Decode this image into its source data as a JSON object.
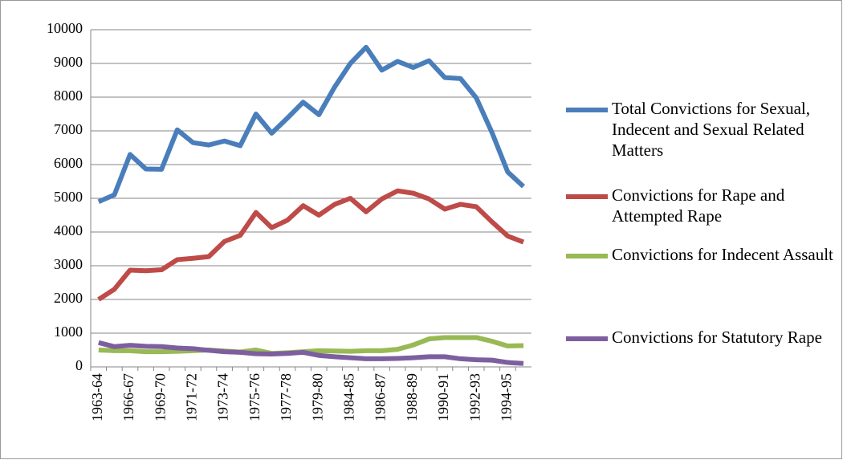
{
  "chart_data": {
    "type": "line",
    "categories": [
      "1963-64",
      null,
      "1966-67",
      null,
      "1969-70",
      null,
      "1971-72",
      null,
      "1973-74",
      null,
      "1975-76",
      null,
      "1977-78",
      null,
      "1979-80",
      null,
      "1984-85",
      null,
      "1986-87",
      null,
      "1988-89",
      null,
      "1990-91",
      null,
      "1992-93",
      null,
      "1994-95",
      null
    ],
    "series": [
      {
        "name": "Total Convictions for Sexual, Indecent and Sexual Related Matters",
        "color": "#4a7ebb",
        "values": [
          4900,
          5100,
          6300,
          5870,
          5860,
          7030,
          6650,
          6580,
          6700,
          6560,
          7500,
          6930,
          7380,
          7850,
          7480,
          8300,
          9000,
          9480,
          8800,
          9060,
          8880,
          9080,
          8580,
          8550,
          7980,
          6950,
          5780,
          5350
        ]
      },
      {
        "name": "Convictions for Rape and Attempted Rape",
        "color": "#be4b48",
        "values": [
          2000,
          2300,
          2870,
          2850,
          2880,
          3180,
          3220,
          3270,
          3720,
          3900,
          4580,
          4130,
          4350,
          4780,
          4500,
          4820,
          5000,
          4600,
          4980,
          5220,
          5150,
          4980,
          4680,
          4820,
          4750,
          4300,
          3880,
          3700
        ]
      },
      {
        "name": "Convictions for Indecent Assault",
        "color": "#98b954",
        "values": [
          500,
          480,
          480,
          450,
          450,
          460,
          480,
          500,
          470,
          440,
          500,
          400,
          420,
          450,
          480,
          470,
          460,
          480,
          480,
          520,
          650,
          830,
          870,
          870,
          870,
          760,
          620,
          630
        ]
      },
      {
        "name": "Convictions for Statutory Rape",
        "color": "#7d5fa0",
        "values": [
          720,
          600,
          640,
          610,
          600,
          560,
          540,
          490,
          450,
          430,
          390,
          380,
          400,
          430,
          340,
          300,
          270,
          240,
          240,
          250,
          270,
          300,
          300,
          240,
          210,
          200,
          130,
          100
        ]
      }
    ],
    "ylim": [
      0,
      10000
    ],
    "yticks": [
      0,
      1000,
      2000,
      3000,
      4000,
      5000,
      6000,
      7000,
      8000,
      9000,
      10000
    ],
    "grid": true,
    "legend": "right"
  }
}
